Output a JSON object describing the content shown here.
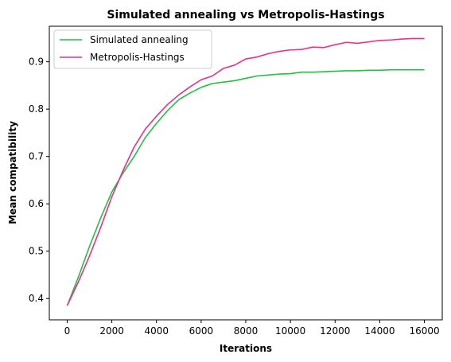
{
  "chart_data": {
    "type": "line",
    "title": "Simulated annealing vs Metropolis-Hastings",
    "xlabel": "Iterations",
    "ylabel": "Mean compatibility",
    "xlim": [
      -800,
      16800
    ],
    "ylim": [
      0.355,
      0.975
    ],
    "xticks": [
      0,
      2000,
      4000,
      6000,
      8000,
      10000,
      12000,
      14000,
      16000
    ],
    "yticks": [
      0.4,
      0.5,
      0.6,
      0.7,
      0.8,
      0.9
    ],
    "ytick_labels": [
      "0.4",
      "0.5",
      "0.6",
      "0.7",
      "0.8",
      "0.9"
    ],
    "grid": false,
    "legend_position": "top-left",
    "x": [
      0,
      500,
      1000,
      1500,
      2000,
      2500,
      3000,
      3500,
      4000,
      4500,
      5000,
      5500,
      6000,
      6500,
      7000,
      7500,
      8000,
      8500,
      9000,
      9500,
      10000,
      10500,
      11000,
      11500,
      12000,
      12500,
      13000,
      13500,
      14000,
      14500,
      15000,
      15500,
      16000
    ],
    "series": [
      {
        "name": "Simulated annealing",
        "color": "#22c040",
        "values": [
          0.385,
          0.445,
          0.51,
          0.57,
          0.625,
          0.665,
          0.7,
          0.74,
          0.77,
          0.797,
          0.82,
          0.834,
          0.846,
          0.854,
          0.857,
          0.86,
          0.865,
          0.87,
          0.872,
          0.874,
          0.875,
          0.878,
          0.878,
          0.879,
          0.88,
          0.881,
          0.881,
          0.882,
          0.882,
          0.883,
          0.883,
          0.883,
          0.883
        ]
      },
      {
        "name": "Metropolis-Hastings",
        "color": "#ee2f8a",
        "values": [
          0.385,
          0.435,
          0.49,
          0.55,
          0.615,
          0.67,
          0.72,
          0.758,
          0.785,
          0.81,
          0.83,
          0.847,
          0.862,
          0.87,
          0.886,
          0.893,
          0.906,
          0.91,
          0.917,
          0.922,
          0.925,
          0.926,
          0.931,
          0.93,
          0.936,
          0.941,
          0.939,
          0.942,
          0.945,
          0.946,
          0.948,
          0.949,
          0.949
        ]
      }
    ]
  }
}
